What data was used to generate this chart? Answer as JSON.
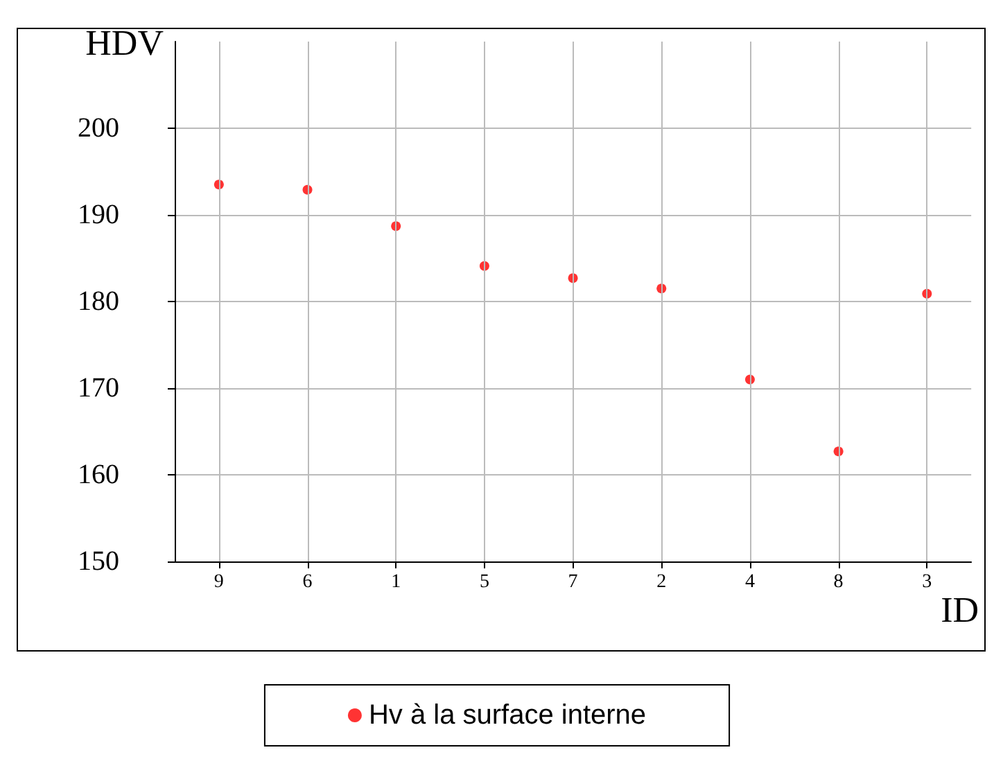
{
  "chart_data": {
    "type": "scatter",
    "xlabel": "ID",
    "ylabel": "HDV",
    "categories": [
      "9",
      "6",
      "1",
      "5",
      "7",
      "2",
      "4",
      "8",
      "3"
    ],
    "series": [
      {
        "name": "Hv à la surface interne",
        "color": "#ff0000",
        "values": [
          193.5,
          192.9,
          188.7,
          184.1,
          182.7,
          181.5,
          171,
          162.7,
          180.9
        ]
      }
    ],
    "ylim": [
      150,
      210
    ],
    "yticks": [
      150,
      160,
      170,
      180,
      190,
      200
    ],
    "grid": true,
    "legend": "bottom",
    "marker": "circle"
  }
}
